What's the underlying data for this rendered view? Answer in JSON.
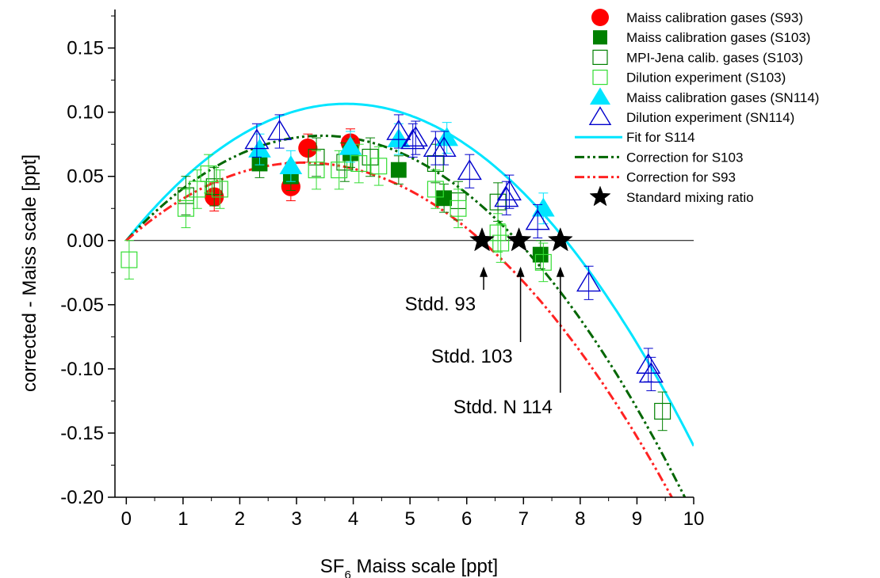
{
  "chart_data": {
    "type": "scatter",
    "xlabel": {
      "pre": "SF",
      "sub": "6",
      "post": " Maiss scale [ppt]"
    },
    "ylabel": "corrected - Maiss scale [ppt]",
    "xlim": [
      -0.2,
      10.0
    ],
    "ylim": [
      -0.2,
      0.18
    ],
    "xticks": [
      0,
      1,
      2,
      3,
      4,
      5,
      6,
      7,
      8,
      9,
      10
    ],
    "yticks": [
      -0.2,
      -0.15,
      -0.1,
      -0.05,
      0.0,
      0.05,
      0.1,
      0.15
    ],
    "ytick_labels": [
      "-0.20",
      "-0.15",
      "-0.10",
      "-0.05",
      "0.00",
      "0.05",
      "0.10",
      "0.15"
    ],
    "grid": false,
    "legend_position": "top-right",
    "zero_line": true,
    "series": [
      {
        "name": "Maiss calibration gases (S93)",
        "marker": "circle",
        "filled": true,
        "color": "#ff0000",
        "points": [
          [
            1.55,
            0.034,
            0.011
          ],
          [
            2.9,
            0.042,
            0.011
          ],
          [
            3.2,
            0.072,
            0.011
          ],
          [
            3.95,
            0.076,
            0.011
          ]
        ]
      },
      {
        "name": "Maiss calibration gases (S103)",
        "marker": "square",
        "filled": true,
        "color": "#008000",
        "points": [
          [
            2.35,
            0.06,
            0.011
          ],
          [
            2.9,
            0.05,
            0.011
          ],
          [
            3.95,
            0.068,
            0.011
          ],
          [
            4.8,
            0.055,
            0.011
          ],
          [
            5.6,
            0.033,
            0.011
          ],
          [
            7.3,
            -0.011,
            0.011
          ]
        ]
      },
      {
        "name": "MPI-Jena calib. gases (S103)",
        "marker": "square",
        "filled": false,
        "color": "#008000",
        "points": [
          [
            1.05,
            0.035,
            0.015
          ],
          [
            1.55,
            0.042,
            0.015
          ],
          [
            3.35,
            0.065,
            0.015
          ],
          [
            3.85,
            0.061,
            0.015
          ],
          [
            4.3,
            0.065,
            0.015
          ],
          [
            5.45,
            0.06,
            0.015
          ],
          [
            5.85,
            0.031,
            0.015
          ],
          [
            6.55,
            0.03,
            0.015
          ],
          [
            9.45,
            -0.133,
            0.015
          ]
        ]
      },
      {
        "name": "Dilution experiment (S103)",
        "marker": "square",
        "filled": false,
        "color": "#33dd33",
        "points": [
          [
            0.05,
            -0.015,
            0.015
          ],
          [
            1.05,
            0.025,
            0.015
          ],
          [
            1.25,
            0.04,
            0.015
          ],
          [
            1.45,
            0.052,
            0.015
          ],
          [
            1.65,
            0.04,
            0.015
          ],
          [
            3.35,
            0.055,
            0.015
          ],
          [
            3.75,
            0.055,
            0.015
          ],
          [
            4.1,
            0.06,
            0.015
          ],
          [
            4.45,
            0.058,
            0.015
          ],
          [
            5.45,
            0.04,
            0.015
          ],
          [
            5.85,
            0.025,
            0.015
          ],
          [
            6.55,
            0.006,
            0.015
          ],
          [
            6.6,
            -0.002,
            0.015
          ],
          [
            7.35,
            -0.017,
            0.015
          ]
        ]
      },
      {
        "name": "Maiss calibration gases (SN114)",
        "marker": "triangle",
        "filled": true,
        "color": "#00e5ff",
        "points": [
          [
            2.35,
            0.071,
            0.012
          ],
          [
            2.9,
            0.058,
            0.012
          ],
          [
            3.95,
            0.073,
            0.012
          ],
          [
            4.8,
            0.079,
            0.012
          ],
          [
            5.65,
            0.08,
            0.012
          ],
          [
            7.35,
            0.025,
            0.012
          ]
        ]
      },
      {
        "name": "Dilution experiment (SN114)",
        "marker": "triangle",
        "filled": false,
        "color": "#0000cc",
        "points": [
          [
            2.3,
            0.078,
            0.013
          ],
          [
            2.7,
            0.085,
            0.013
          ],
          [
            4.8,
            0.085,
            0.013
          ],
          [
            5.05,
            0.078,
            0.013
          ],
          [
            5.1,
            0.08,
            0.013
          ],
          [
            5.45,
            0.072,
            0.013
          ],
          [
            5.6,
            0.072,
            0.013
          ],
          [
            6.05,
            0.054,
            0.013
          ],
          [
            6.7,
            0.033,
            0.013
          ],
          [
            6.75,
            0.038,
            0.013
          ],
          [
            7.25,
            0.015,
            0.013
          ],
          [
            8.15,
            -0.033,
            0.013
          ],
          [
            9.2,
            -0.097,
            0.013
          ],
          [
            9.25,
            -0.104,
            0.013
          ]
        ]
      }
    ],
    "curves": [
      {
        "name": "Fit for S114",
        "style": "solid",
        "color": "#00e5ff",
        "coef": [
          0.055,
          -0.0071
        ]
      },
      {
        "name": "Correction for S103",
        "style": "dash-dot-dot",
        "color": "#006600",
        "coef": [
          0.0474,
          -0.00688
        ]
      },
      {
        "name": "Correction for S93",
        "style": "dash-dot-dot",
        "color": "#ff2222",
        "coef": [
          0.0388,
          -0.0062
        ]
      }
    ],
    "stars": {
      "name": "Standard mixing ratio",
      "x": [
        6.27,
        6.92,
        7.65
      ],
      "y": [
        0.0,
        0.0,
        0.0
      ]
    },
    "annotations": [
      {
        "text": "Stdd. 93",
        "x": 6.27
      },
      {
        "text": "Stdd. 103",
        "x": 6.92
      },
      {
        "text": "Stdd. N 114",
        "x": 7.65
      }
    ]
  }
}
